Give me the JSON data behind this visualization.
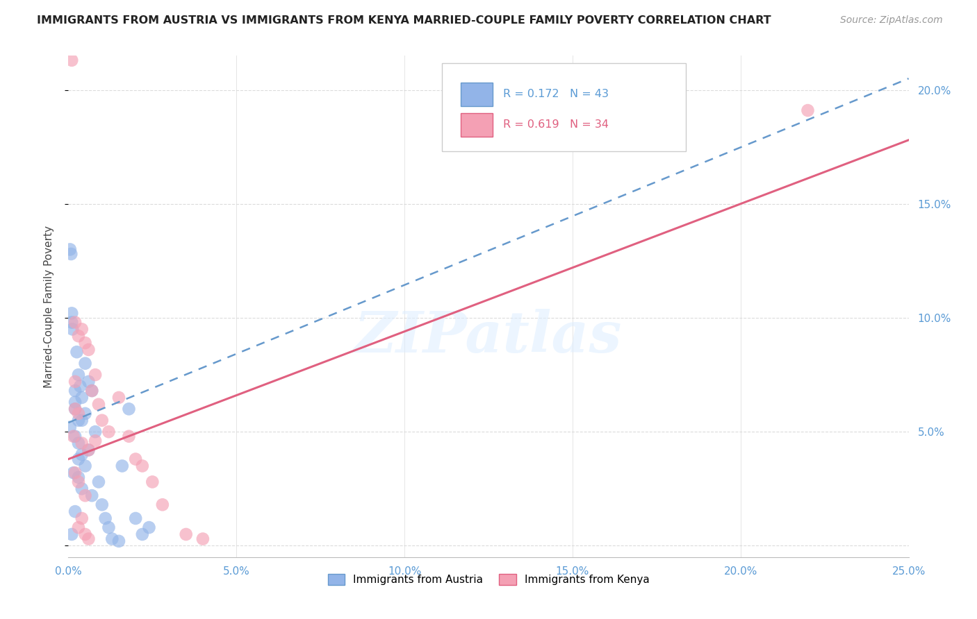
{
  "title": "IMMIGRANTS FROM AUSTRIA VS IMMIGRANTS FROM KENYA MARRIED-COUPLE FAMILY POVERTY CORRELATION CHART",
  "source": "Source: ZipAtlas.com",
  "ylabel": "Married-Couple Family Poverty",
  "xlim": [
    0.0,
    0.25
  ],
  "ylim": [
    -0.005,
    0.215
  ],
  "xticks": [
    0.0,
    0.05,
    0.1,
    0.15,
    0.2,
    0.25
  ],
  "yticks": [
    0.0,
    0.05,
    0.1,
    0.15,
    0.2
  ],
  "xticklabels": [
    "0.0%",
    "5.0%",
    "10.0%",
    "15.0%",
    "20.0%",
    "25.0%"
  ],
  "yticklabels": [
    "",
    "5.0%",
    "10.0%",
    "15.0%",
    "20.0%"
  ],
  "austria_color": "#92b4e8",
  "austria_line_color": "#6699cc",
  "kenya_color": "#f4a0b4",
  "kenya_line_color": "#e06080",
  "austria_R": 0.172,
  "austria_N": 43,
  "kenya_R": 0.619,
  "kenya_N": 34,
  "austria_line": [
    [
      0.0,
      0.054
    ],
    [
      0.25,
      0.205
    ]
  ],
  "kenya_line": [
    [
      0.0,
      0.038
    ],
    [
      0.25,
      0.178
    ]
  ],
  "austria_scatter_x": [
    0.0005,
    0.0008,
    0.001,
    0.001,
    0.0012,
    0.0015,
    0.002,
    0.002,
    0.002,
    0.002,
    0.0025,
    0.003,
    0.003,
    0.003,
    0.003,
    0.0035,
    0.004,
    0.004,
    0.004,
    0.004,
    0.005,
    0.005,
    0.005,
    0.006,
    0.006,
    0.007,
    0.007,
    0.008,
    0.009,
    0.01,
    0.011,
    0.012,
    0.013,
    0.015,
    0.016,
    0.018,
    0.02,
    0.022,
    0.024,
    0.0005,
    0.001,
    0.002,
    0.003
  ],
  "austria_scatter_y": [
    0.13,
    0.128,
    0.102,
    0.098,
    0.095,
    0.032,
    0.068,
    0.063,
    0.06,
    0.048,
    0.085,
    0.075,
    0.055,
    0.045,
    0.038,
    0.07,
    0.065,
    0.055,
    0.04,
    0.025,
    0.08,
    0.058,
    0.035,
    0.072,
    0.042,
    0.068,
    0.022,
    0.05,
    0.028,
    0.018,
    0.012,
    0.008,
    0.003,
    0.002,
    0.035,
    0.06,
    0.012,
    0.005,
    0.008,
    0.052,
    0.005,
    0.015,
    0.03
  ],
  "kenya_scatter_x": [
    0.001,
    0.0015,
    0.002,
    0.002,
    0.002,
    0.003,
    0.003,
    0.003,
    0.004,
    0.004,
    0.005,
    0.005,
    0.006,
    0.006,
    0.007,
    0.008,
    0.009,
    0.01,
    0.012,
    0.015,
    0.018,
    0.02,
    0.022,
    0.025,
    0.028,
    0.035,
    0.04,
    0.002,
    0.003,
    0.004,
    0.005,
    0.006,
    0.008,
    0.22
  ],
  "kenya_scatter_y": [
    0.213,
    0.048,
    0.098,
    0.06,
    0.032,
    0.092,
    0.058,
    0.028,
    0.095,
    0.045,
    0.089,
    0.022,
    0.086,
    0.042,
    0.068,
    0.075,
    0.062,
    0.055,
    0.05,
    0.065,
    0.048,
    0.038,
    0.035,
    0.028,
    0.018,
    0.005,
    0.003,
    0.072,
    0.008,
    0.012,
    0.005,
    0.003,
    0.046,
    0.191
  ],
  "watermark_text": "ZIPatlas",
  "legend_austria_label": "Immigrants from Austria",
  "legend_kenya_label": "Immigrants from Kenya"
}
